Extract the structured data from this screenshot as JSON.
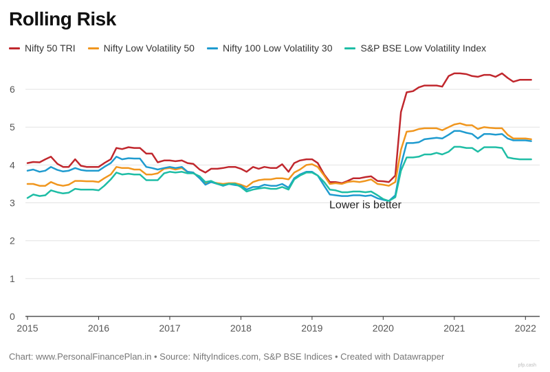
{
  "title": "Rolling Risk",
  "footer": "Chart: www.PersonalFinancePlan.in • Source: NiftyIndices.com, S&P BSE Indices • Created with Datawrapper",
  "watermark": "pfp.cash",
  "chart_data": {
    "type": "line",
    "title": "Rolling Risk",
    "xlabel": "",
    "ylabel": "",
    "xlim": [
      2015,
      2022.2
    ],
    "ylim": [
      0,
      6.6
    ],
    "x_ticks": [
      "2015",
      "2016",
      "2017",
      "2018",
      "2019",
      "2020",
      "2021",
      "2022"
    ],
    "y_ticks": [
      "0",
      "1",
      "2",
      "3",
      "4",
      "5",
      "6"
    ],
    "grid": true,
    "legend_position": "top",
    "annotation": "Lower is better",
    "series": [
      {
        "name": "Nifty 50 TRI",
        "color": "#c0272d",
        "x": [
          2015.0,
          2015.08,
          2015.17,
          2015.25,
          2015.33,
          2015.42,
          2015.5,
          2015.58,
          2015.67,
          2015.75,
          2015.83,
          2015.92,
          2016.0,
          2016.08,
          2016.17,
          2016.25,
          2016.33,
          2016.42,
          2016.5,
          2016.58,
          2016.67,
          2016.75,
          2016.83,
          2016.92,
          2017.0,
          2017.08,
          2017.17,
          2017.25,
          2017.33,
          2017.42,
          2017.5,
          2017.58,
          2017.67,
          2017.75,
          2017.83,
          2017.92,
          2018.0,
          2018.08,
          2018.17,
          2018.25,
          2018.33,
          2018.42,
          2018.5,
          2018.58,
          2018.67,
          2018.75,
          2018.83,
          2018.92,
          2019.0,
          2019.08,
          2019.17,
          2019.25,
          2019.33,
          2019.42,
          2019.5,
          2019.58,
          2019.67,
          2019.75,
          2019.83,
          2019.92,
          2020.0,
          2020.08,
          2020.17,
          2020.25,
          2020.33,
          2020.42,
          2020.5,
          2020.58,
          2020.67,
          2020.75,
          2020.83,
          2020.92,
          2021.0,
          2021.08,
          2021.17,
          2021.25,
          2021.33,
          2021.42,
          2021.5,
          2021.58,
          2021.67,
          2021.75,
          2021.83,
          2021.92,
          2022.0,
          2022.08
        ],
        "values": [
          4.05,
          4.08,
          4.07,
          4.15,
          4.22,
          4.03,
          3.95,
          3.95,
          4.15,
          3.98,
          3.95,
          3.95,
          3.95,
          4.05,
          4.15,
          4.45,
          4.42,
          4.47,
          4.45,
          4.45,
          4.3,
          4.3,
          4.07,
          4.12,
          4.12,
          4.1,
          4.12,
          4.05,
          4.03,
          3.88,
          3.8,
          3.9,
          3.9,
          3.92,
          3.95,
          3.95,
          3.9,
          3.82,
          3.95,
          3.9,
          3.95,
          3.92,
          3.92,
          4.02,
          3.82,
          4.05,
          4.12,
          4.15,
          4.15,
          4.05,
          3.75,
          3.55,
          3.55,
          3.52,
          3.58,
          3.65,
          3.65,
          3.68,
          3.7,
          3.58,
          3.57,
          3.55,
          3.72,
          5.4,
          5.92,
          5.95,
          6.05,
          6.1,
          6.1,
          6.1,
          6.07,
          6.35,
          6.42,
          6.42,
          6.4,
          6.35,
          6.33,
          6.38,
          6.38,
          6.33,
          6.42,
          6.3,
          6.2,
          6.25,
          6.25,
          6.25
        ]
      },
      {
        "name": "Nifty Low Volatility 50",
        "color": "#f0961e",
        "x": [
          2015.0,
          2015.08,
          2015.17,
          2015.25,
          2015.33,
          2015.42,
          2015.5,
          2015.58,
          2015.67,
          2015.75,
          2015.83,
          2015.92,
          2016.0,
          2016.08,
          2016.17,
          2016.25,
          2016.33,
          2016.42,
          2016.5,
          2016.58,
          2016.67,
          2016.75,
          2016.83,
          2016.92,
          2017.0,
          2017.08,
          2017.17,
          2017.25,
          2017.33,
          2017.42,
          2017.5,
          2017.58,
          2017.67,
          2017.75,
          2017.83,
          2017.92,
          2018.0,
          2018.08,
          2018.17,
          2018.25,
          2018.33,
          2018.42,
          2018.5,
          2018.58,
          2018.67,
          2018.75,
          2018.83,
          2018.92,
          2019.0,
          2019.08,
          2019.17,
          2019.25,
          2019.33,
          2019.42,
          2019.5,
          2019.58,
          2019.67,
          2019.75,
          2019.83,
          2019.92,
          2020.0,
          2020.08,
          2020.17,
          2020.25,
          2020.33,
          2020.42,
          2020.5,
          2020.58,
          2020.67,
          2020.75,
          2020.83,
          2020.92,
          2021.0,
          2021.08,
          2021.17,
          2021.25,
          2021.33,
          2021.42,
          2021.5,
          2021.58,
          2021.67,
          2021.75,
          2021.83,
          2021.92,
          2022.0,
          2022.08
        ],
        "values": [
          3.5,
          3.5,
          3.45,
          3.45,
          3.55,
          3.48,
          3.45,
          3.48,
          3.58,
          3.58,
          3.57,
          3.57,
          3.55,
          3.65,
          3.75,
          3.95,
          3.92,
          3.92,
          3.88,
          3.88,
          3.75,
          3.75,
          3.78,
          3.9,
          3.92,
          3.88,
          3.92,
          3.82,
          3.8,
          3.65,
          3.52,
          3.55,
          3.52,
          3.5,
          3.52,
          3.52,
          3.48,
          3.42,
          3.55,
          3.6,
          3.62,
          3.62,
          3.65,
          3.65,
          3.62,
          3.8,
          3.88,
          4.0,
          4.02,
          3.95,
          3.72,
          3.5,
          3.52,
          3.5,
          3.55,
          3.57,
          3.55,
          3.58,
          3.62,
          3.5,
          3.48,
          3.45,
          3.55,
          4.4,
          4.88,
          4.9,
          4.95,
          4.97,
          4.97,
          4.97,
          4.92,
          5.0,
          5.07,
          5.1,
          5.05,
          5.05,
          4.95,
          5.0,
          4.98,
          4.97,
          4.97,
          4.8,
          4.7,
          4.7,
          4.7,
          4.68
        ]
      },
      {
        "name": "Nifty 100 Low Volatility 30",
        "color": "#1f9bcf",
        "x": [
          2015.0,
          2015.08,
          2015.17,
          2015.25,
          2015.33,
          2015.42,
          2015.5,
          2015.58,
          2015.67,
          2015.75,
          2015.83,
          2015.92,
          2016.0,
          2016.08,
          2016.17,
          2016.25,
          2016.33,
          2016.42,
          2016.5,
          2016.58,
          2016.67,
          2016.75,
          2016.83,
          2016.92,
          2017.0,
          2017.08,
          2017.17,
          2017.25,
          2017.33,
          2017.42,
          2017.5,
          2017.58,
          2017.67,
          2017.75,
          2017.83,
          2017.92,
          2018.0,
          2018.08,
          2018.17,
          2018.25,
          2018.33,
          2018.42,
          2018.5,
          2018.58,
          2018.67,
          2018.75,
          2018.83,
          2018.92,
          2019.0,
          2019.08,
          2019.17,
          2019.25,
          2019.33,
          2019.42,
          2019.5,
          2019.58,
          2019.67,
          2019.75,
          2019.83,
          2019.92,
          2020.0,
          2020.08,
          2020.17,
          2020.25,
          2020.33,
          2020.42,
          2020.5,
          2020.58,
          2020.67,
          2020.75,
          2020.83,
          2020.92,
          2021.0,
          2021.08,
          2021.17,
          2021.25,
          2021.33,
          2021.42,
          2021.5,
          2021.58,
          2021.67,
          2021.75,
          2021.83,
          2021.92,
          2022.0,
          2022.08
        ],
        "values": [
          3.85,
          3.88,
          3.82,
          3.85,
          3.95,
          3.87,
          3.83,
          3.85,
          3.92,
          3.87,
          3.85,
          3.85,
          3.85,
          3.95,
          4.05,
          4.22,
          4.15,
          4.18,
          4.17,
          4.17,
          3.95,
          3.92,
          3.88,
          3.92,
          3.95,
          3.92,
          3.95,
          3.82,
          3.8,
          3.65,
          3.48,
          3.55,
          3.5,
          3.45,
          3.5,
          3.47,
          3.45,
          3.35,
          3.42,
          3.42,
          3.48,
          3.45,
          3.45,
          3.5,
          3.4,
          3.65,
          3.75,
          3.82,
          3.82,
          3.72,
          3.45,
          3.22,
          3.2,
          3.18,
          3.18,
          3.2,
          3.2,
          3.18,
          3.2,
          3.12,
          3.08,
          3.05,
          3.2,
          4.0,
          4.58,
          4.58,
          4.6,
          4.68,
          4.7,
          4.72,
          4.7,
          4.8,
          4.9,
          4.9,
          4.85,
          4.82,
          4.7,
          4.82,
          4.82,
          4.8,
          4.82,
          4.7,
          4.65,
          4.65,
          4.65,
          4.63
        ]
      },
      {
        "name": "S&P BSE Low Volatility Index",
        "color": "#1ebda5",
        "x": [
          2015.0,
          2015.08,
          2015.17,
          2015.25,
          2015.33,
          2015.42,
          2015.5,
          2015.58,
          2015.67,
          2015.75,
          2015.83,
          2015.92,
          2016.0,
          2016.08,
          2016.17,
          2016.25,
          2016.33,
          2016.42,
          2016.5,
          2016.58,
          2016.67,
          2016.75,
          2016.83,
          2016.92,
          2017.0,
          2017.08,
          2017.17,
          2017.25,
          2017.33,
          2017.42,
          2017.5,
          2017.58,
          2017.67,
          2017.75,
          2017.83,
          2017.92,
          2018.0,
          2018.08,
          2018.17,
          2018.25,
          2018.33,
          2018.42,
          2018.5,
          2018.58,
          2018.67,
          2018.75,
          2018.83,
          2018.92,
          2019.0,
          2019.08,
          2019.17,
          2019.25,
          2019.33,
          2019.42,
          2019.5,
          2019.58,
          2019.67,
          2019.75,
          2019.83,
          2019.92,
          2020.0,
          2020.08,
          2020.17,
          2020.25,
          2020.33,
          2020.42,
          2020.5,
          2020.58,
          2020.67,
          2020.75,
          2020.83,
          2020.92,
          2021.0,
          2021.08,
          2021.17,
          2021.25,
          2021.33,
          2021.42,
          2021.5,
          2021.58,
          2021.67,
          2021.75,
          2021.83,
          2021.92,
          2022.0,
          2022.08
        ],
        "values": [
          3.13,
          3.22,
          3.18,
          3.2,
          3.33,
          3.28,
          3.25,
          3.27,
          3.37,
          3.35,
          3.35,
          3.35,
          3.33,
          3.45,
          3.62,
          3.8,
          3.75,
          3.77,
          3.75,
          3.75,
          3.6,
          3.6,
          3.6,
          3.78,
          3.82,
          3.8,
          3.82,
          3.78,
          3.78,
          3.7,
          3.55,
          3.58,
          3.5,
          3.47,
          3.5,
          3.5,
          3.42,
          3.3,
          3.35,
          3.38,
          3.4,
          3.37,
          3.37,
          3.42,
          3.35,
          3.62,
          3.72,
          3.8,
          3.8,
          3.72,
          3.55,
          3.35,
          3.33,
          3.28,
          3.28,
          3.3,
          3.3,
          3.28,
          3.3,
          3.2,
          3.1,
          3.05,
          3.15,
          3.85,
          4.2,
          4.2,
          4.22,
          4.28,
          4.28,
          4.32,
          4.28,
          4.35,
          4.48,
          4.48,
          4.45,
          4.45,
          4.35,
          4.47,
          4.47,
          4.47,
          4.45,
          4.2,
          4.17,
          4.15,
          4.15,
          4.15
        ]
      }
    ]
  }
}
